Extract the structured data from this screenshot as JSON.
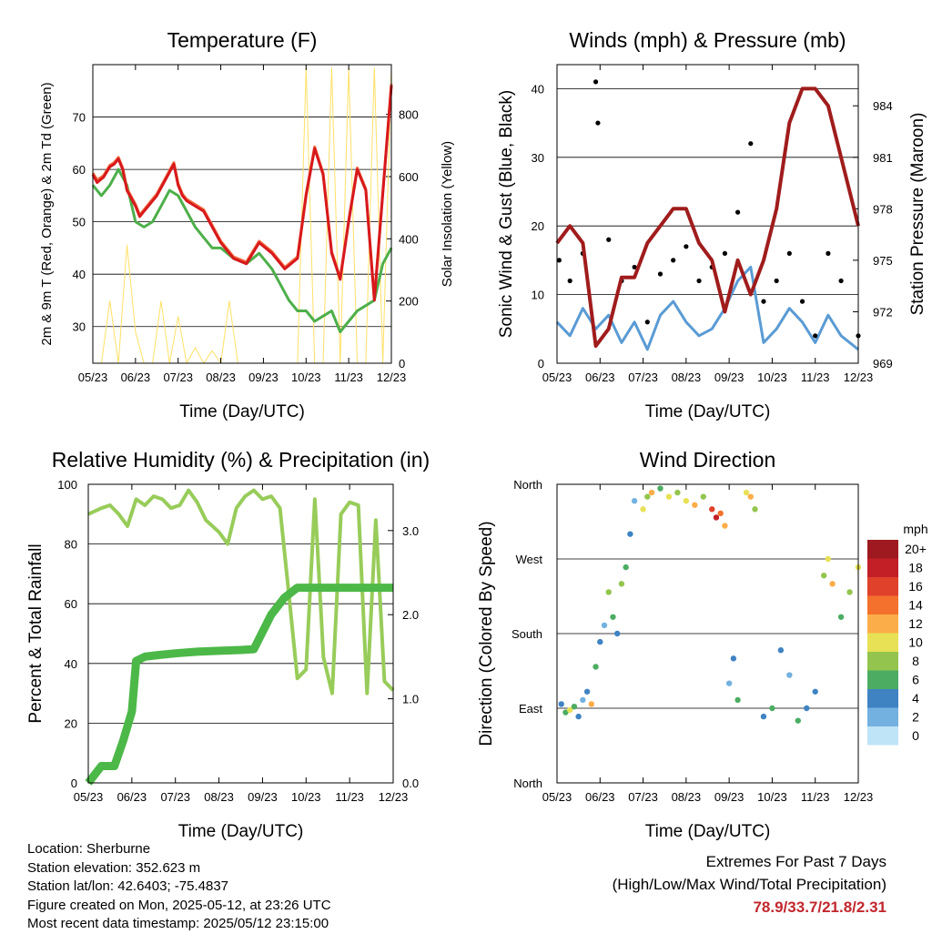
{
  "colors": {
    "red": "#d7191c",
    "orange": "#f46d43",
    "green": "#4daf4a",
    "yellow": "#ffe066",
    "blue": "#5a9bd4",
    "maroon": "#a01c1c",
    "rhgreen": "#98cc5a",
    "precip": "#4cb848"
  },
  "chart_data": [
    {
      "type": "line",
      "title": "Temperature (F)",
      "xlabel": "Time (Day/UTC)",
      "ylabel": "2m & 9m T (Red, Orange) & 2m Td (Green)",
      "ylabel_right": "Solar Insolation (Yellow)",
      "x_ticks": [
        "05/23",
        "06/23",
        "07/23",
        "08/23",
        "09/23",
        "10/23",
        "11/23",
        "12/23"
      ],
      "y_ticks": [
        30,
        40,
        50,
        60,
        70
      ],
      "y_ticks_right": [
        0,
        200,
        400,
        600,
        800
      ],
      "ylim": [
        23,
        80
      ],
      "ylim_right": [
        0,
        960
      ],
      "series": [
        {
          "name": "2m T",
          "color": "#d7191c",
          "x": [
            0,
            0.1,
            0.25,
            0.4,
            0.5,
            0.6,
            0.7,
            0.8,
            1.0,
            1.1,
            1.2,
            1.3,
            1.5,
            1.7,
            1.9,
            2.0,
            2.1,
            2.2,
            2.4,
            2.6,
            2.8,
            3.0,
            3.3,
            3.6,
            3.9,
            4.2,
            4.5,
            4.8,
            5.0,
            5.2,
            5.4,
            5.6,
            5.8,
            6.0,
            6.2,
            6.4,
            6.6,
            7.0
          ],
          "y": [
            59,
            57.5,
            58.5,
            60.5,
            61,
            62,
            60,
            56,
            53,
            51,
            52,
            53,
            55,
            58,
            61,
            57,
            55,
            54,
            53,
            52,
            49,
            46,
            43,
            42,
            46,
            44,
            41,
            43,
            55,
            64,
            59,
            44,
            39,
            50,
            60,
            56,
            35,
            76
          ]
        },
        {
          "name": "9m T",
          "color": "#f46d43",
          "x": [
            0,
            0.1,
            0.25,
            0.4,
            0.5,
            0.6,
            0.7,
            0.8,
            1.0,
            1.1,
            1.2,
            1.3,
            1.5,
            1.7,
            1.9,
            2.0,
            2.1,
            2.2,
            2.4,
            2.6,
            2.8,
            3.0,
            3.3,
            3.6,
            3.9,
            4.2,
            4.5,
            4.8,
            5.0,
            5.2,
            5.4,
            5.6,
            5.8,
            6.0,
            6.2,
            6.4,
            6.6,
            7.0
          ],
          "y": [
            59.3,
            58,
            58.8,
            60.8,
            61.3,
            62.3,
            60.3,
            56.3,
            53.3,
            51.3,
            52.3,
            53.3,
            55.3,
            58.3,
            61.3,
            57.3,
            55.3,
            54.3,
            53.3,
            52.3,
            49.3,
            46.3,
            43.3,
            42.3,
            46.3,
            44.3,
            41.3,
            43.3,
            55.3,
            64.3,
            59.3,
            44.3,
            39.3,
            50.3,
            60.3,
            56.3,
            35.3,
            76.3
          ]
        },
        {
          "name": "2m Td",
          "color": "#4daf4a",
          "x": [
            0,
            0.2,
            0.4,
            0.6,
            0.8,
            1.0,
            1.2,
            1.4,
            1.6,
            1.8,
            2.0,
            2.2,
            2.4,
            2.6,
            2.8,
            3.0,
            3.3,
            3.6,
            3.9,
            4.2,
            4.4,
            4.6,
            4.8,
            5.0,
            5.2,
            5.4,
            5.6,
            5.8,
            6.0,
            6.2,
            6.4,
            6.6,
            6.8,
            7.0
          ],
          "y": [
            57,
            55,
            57,
            60,
            57,
            50,
            49,
            50,
            53,
            56,
            55,
            52,
            49,
            47,
            45,
            45,
            43,
            42,
            44,
            41,
            38,
            35,
            33,
            33,
            31,
            32,
            33,
            29,
            31,
            33,
            34,
            35,
            42,
            45
          ]
        },
        {
          "name": "Solar Insolation",
          "color": "#ffe066",
          "axis": "right",
          "x": [
            0.2,
            0.4,
            0.6,
            0.8,
            1.0,
            1.2,
            1.4,
            1.6,
            1.8,
            2.0,
            2.2,
            2.4,
            2.6,
            2.8,
            3.0,
            3.2,
            3.4,
            3.6,
            3.8,
            4.0,
            4.2,
            4.4,
            4.6,
            4.8,
            5.0,
            5.2,
            5.4,
            5.6,
            5.8,
            6.0,
            6.2,
            6.4,
            6.6,
            6.8,
            7.0
          ],
          "y": [
            0,
            200,
            0,
            380,
            100,
            0,
            0,
            200,
            0,
            150,
            0,
            50,
            0,
            40,
            0,
            200,
            0,
            0,
            0,
            0,
            0,
            0,
            0,
            0,
            950,
            0,
            0,
            950,
            0,
            950,
            0,
            0,
            950,
            0,
            950
          ]
        }
      ]
    },
    {
      "type": "line",
      "title": "Winds (mph) & Pressure (mb)",
      "xlabel": "Time (Day/UTC)",
      "ylabel": "Sonic Wind & Gust (Blue, Black)",
      "ylabel_right": "Station Pressure (Maroon)",
      "x_ticks": [
        "05/23",
        "06/23",
        "07/23",
        "08/23",
        "09/23",
        "10/23",
        "11/23",
        "12/23"
      ],
      "y_ticks": [
        0,
        10,
        20,
        30,
        40
      ],
      "y_ticks_right": [
        969,
        972,
        975,
        978,
        981,
        984
      ],
      "ylim": [
        0,
        43.5
      ],
      "ylim_right": [
        969,
        986.4
      ],
      "series": [
        {
          "name": "Sonic Wind",
          "color": "#5a9bd4",
          "x": [
            0,
            0.3,
            0.6,
            0.9,
            1.2,
            1.5,
            1.8,
            2.1,
            2.4,
            2.7,
            3.0,
            3.3,
            3.6,
            3.9,
            4.2,
            4.5,
            4.8,
            5.1,
            5.4,
            5.7,
            6.0,
            6.3,
            6.6,
            7.0
          ],
          "y": [
            6,
            4,
            8,
            5,
            7,
            3,
            6,
            2,
            7,
            9,
            6,
            4,
            5,
            8,
            12,
            14,
            3,
            5,
            8,
            6,
            3,
            7,
            4,
            2
          ]
        },
        {
          "name": "Gust",
          "color": "#000000",
          "x": [
            0.05,
            0.3,
            0.6,
            0.9,
            0.95,
            1.2,
            1.5,
            1.8,
            2.1,
            2.4,
            2.7,
            3.0,
            3.3,
            3.6,
            3.9,
            4.2,
            4.5,
            4.8,
            5.1,
            5.4,
            5.7,
            6.0,
            6.3,
            6.6,
            7.0
          ],
          "y": [
            15,
            12,
            16,
            41,
            35,
            18,
            12,
            14,
            6,
            13,
            15,
            17,
            12,
            14,
            16,
            22,
            32,
            9,
            12,
            16,
            9,
            4,
            16,
            12,
            4
          ]
        },
        {
          "name": "Station Pressure",
          "color": "#a01c1c",
          "axis": "right",
          "x": [
            0,
            0.3,
            0.6,
            0.9,
            1.2,
            1.5,
            1.8,
            2.1,
            2.4,
            2.7,
            3.0,
            3.3,
            3.6,
            3.9,
            4.2,
            4.5,
            4.8,
            5.1,
            5.4,
            5.7,
            6.0,
            6.3,
            6.6,
            6.9,
            7.0
          ],
          "y": [
            976,
            977,
            976,
            970,
            971,
            974,
            974,
            976,
            977,
            978,
            978,
            976,
            975,
            972,
            975,
            973,
            975,
            978,
            983,
            985,
            985,
            984,
            981,
            978,
            977
          ]
        }
      ]
    },
    {
      "type": "line",
      "title": "Relative Humidity (%) & Precipitation (in)",
      "xlabel": "Time (Day/UTC)",
      "ylabel": "Percent & Total Rainfall",
      "x_ticks": [
        "05/23",
        "06/23",
        "07/23",
        "08/23",
        "09/23",
        "10/23",
        "11/23",
        "12/23"
      ],
      "y_ticks": [
        0,
        20,
        40,
        60,
        80,
        100
      ],
      "y_ticks_right": [
        "0.0",
        "1.0",
        "2.0",
        "3.0"
      ],
      "ylim": [
        0,
        100
      ],
      "ylim_right": [
        0,
        3.55
      ],
      "series": [
        {
          "name": "Relative Humidity",
          "color": "#98cc5a",
          "x": [
            0,
            0.3,
            0.5,
            0.7,
            0.9,
            1.1,
            1.3,
            1.5,
            1.7,
            1.9,
            2.1,
            2.3,
            2.5,
            2.7,
            3.0,
            3.2,
            3.4,
            3.6,
            3.8,
            4.0,
            4.2,
            4.4,
            4.6,
            4.8,
            5.0,
            5.2,
            5.4,
            5.6,
            5.8,
            6.0,
            6.2,
            6.4,
            6.6,
            6.8,
            7.0
          ],
          "y": [
            90,
            92,
            93,
            90,
            86,
            95,
            93,
            96,
            95,
            92,
            93,
            98,
            94,
            88,
            84,
            80,
            92,
            96,
            98,
            95,
            96,
            92,
            64,
            35,
            38,
            95,
            42,
            30,
            90,
            94,
            93,
            30,
            88,
            34,
            31
          ]
        },
        {
          "name": "Total Rainfall",
          "color": "#4cb848",
          "axis": "right",
          "x": [
            0,
            0.3,
            0.4,
            0.6,
            0.8,
            1.0,
            1.1,
            1.3,
            1.6,
            2.0,
            2.5,
            3.0,
            3.5,
            3.8,
            4.2,
            4.5,
            4.8,
            5.5,
            6.0,
            6.5,
            7.0
          ],
          "y": [
            0,
            0.2,
            0.2,
            0.2,
            0.5,
            0.85,
            1.45,
            1.5,
            1.52,
            1.54,
            1.56,
            1.57,
            1.58,
            1.59,
            2.0,
            2.2,
            2.32,
            2.32,
            2.32,
            2.32,
            2.32
          ]
        }
      ]
    },
    {
      "type": "scatter",
      "title": "Wind Direction",
      "xlabel": "Time (Day/UTC)",
      "ylabel": "Direction (Colored By Speed)",
      "x_ticks": [
        "05/23",
        "06/23",
        "07/23",
        "08/23",
        "09/23",
        "10/23",
        "11/23",
        "12/23"
      ],
      "y_ticks": [
        "North",
        "East",
        "South",
        "West",
        "North"
      ],
      "legend_title": "mph",
      "legend": [
        "20+",
        "18",
        "16",
        "14",
        "12",
        "10",
        "8",
        "6",
        "4",
        "2",
        "0"
      ],
      "legend_colors": [
        "#9e1a20",
        "#c21f26",
        "#e0412b",
        "#f4712d",
        "#fbad49",
        "#e8e155",
        "#93c54e",
        "#4cad62",
        "#3f83c3",
        "#73b1e0",
        "#bfe3f7"
      ],
      "points": [
        [
          0.1,
          95,
          4
        ],
        [
          0.2,
          85,
          6
        ],
        [
          0.3,
          88,
          10
        ],
        [
          0.4,
          92,
          6
        ],
        [
          0.5,
          80,
          4
        ],
        [
          0.6,
          100,
          2
        ],
        [
          0.7,
          110,
          4
        ],
        [
          0.8,
          95,
          12
        ],
        [
          0.9,
          140,
          6
        ],
        [
          1.0,
          170,
          4
        ],
        [
          1.1,
          190,
          2
        ],
        [
          1.2,
          230,
          8
        ],
        [
          1.3,
          200,
          6
        ],
        [
          1.4,
          180,
          4
        ],
        [
          1.5,
          240,
          8
        ],
        [
          1.6,
          260,
          6
        ],
        [
          1.7,
          300,
          4
        ],
        [
          1.8,
          340,
          2
        ],
        [
          2.0,
          330,
          10
        ],
        [
          2.1,
          345,
          8
        ],
        [
          2.2,
          350,
          12
        ],
        [
          2.4,
          355,
          6
        ],
        [
          2.6,
          345,
          10
        ],
        [
          2.8,
          350,
          8
        ],
        [
          3.0,
          340,
          10
        ],
        [
          3.2,
          335,
          12
        ],
        [
          3.4,
          345,
          8
        ],
        [
          3.6,
          330,
          16
        ],
        [
          3.7,
          320,
          18
        ],
        [
          3.8,
          325,
          14
        ],
        [
          3.9,
          310,
          12
        ],
        [
          4.0,
          120,
          2
        ],
        [
          4.1,
          150,
          4
        ],
        [
          4.2,
          100,
          6
        ],
        [
          4.4,
          350,
          10
        ],
        [
          4.5,
          345,
          12
        ],
        [
          4.6,
          330,
          8
        ],
        [
          4.8,
          80,
          4
        ],
        [
          5.0,
          90,
          6
        ],
        [
          5.2,
          160,
          4
        ],
        [
          5.4,
          130,
          2
        ],
        [
          5.6,
          75,
          6
        ],
        [
          5.8,
          90,
          4
        ],
        [
          6.0,
          110,
          4
        ],
        [
          6.2,
          250,
          8
        ],
        [
          6.3,
          270,
          10
        ],
        [
          6.4,
          240,
          12
        ],
        [
          6.6,
          200,
          6
        ],
        [
          6.8,
          230,
          8
        ],
        [
          7.0,
          260,
          10
        ]
      ]
    }
  ],
  "footer": {
    "location": "Location: Sherburne",
    "elevation": "Station elevation: 352.623 m",
    "latlon": "Station lat/lon: 42.6403; -75.4837",
    "created": "Figure created on Mon, 2025-05-12, at 23:26 UTC",
    "recent": "Most recent data timestamp: 2025/05/12 23:15:00",
    "extremes_title": "Extremes For Past 7 Days",
    "extremes_sub": "(High/Low/Max Wind/Total Precipitation)",
    "extremes_vals": "78.9/33.7/21.8/2.31"
  }
}
